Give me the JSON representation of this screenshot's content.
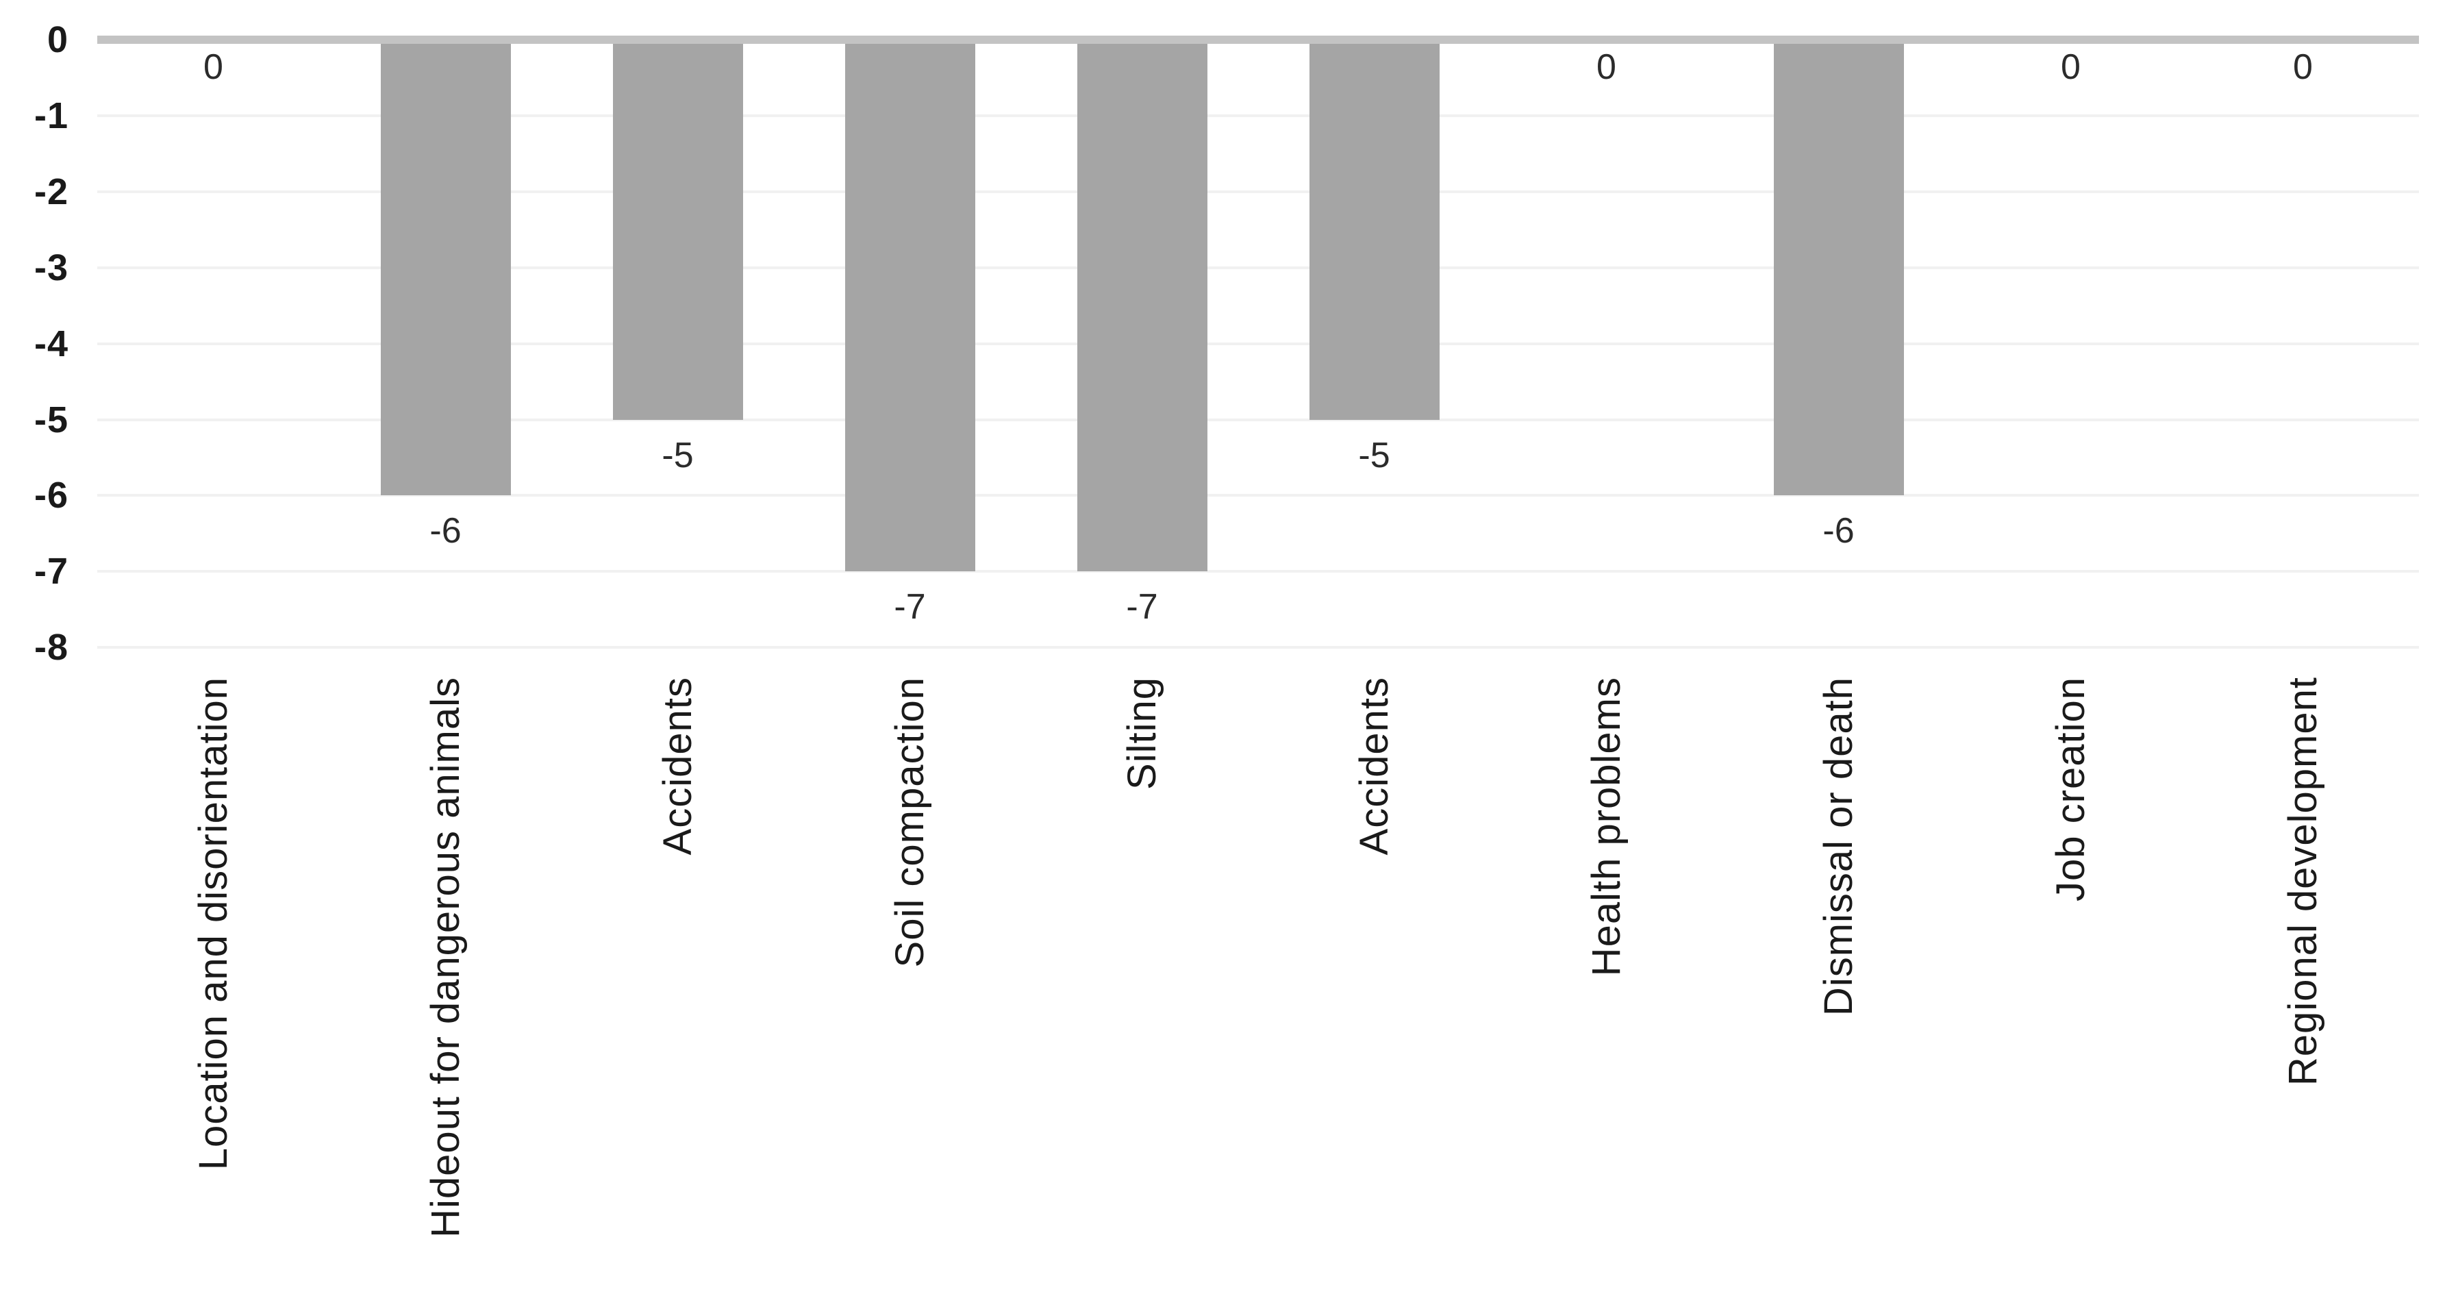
{
  "chart_data": {
    "type": "bar",
    "title": "",
    "xlabel": "",
    "ylabel": "",
    "categories": [
      "Location and disorientation",
      "Hideout for dangerous animals",
      "Accidents",
      "Soil compaction",
      "Silting",
      "Accidents",
      "Health problems",
      "Dismissal or death",
      "Job creation",
      "Regional development"
    ],
    "values": [
      0,
      -6,
      -5,
      -7,
      -7,
      -5,
      0,
      -6,
      0,
      0
    ],
    "data_labels": [
      "0",
      "-6",
      "-5",
      "-7",
      "-7",
      "-5",
      "0",
      "-6",
      "0",
      "0"
    ],
    "ylim": [
      -8,
      0
    ],
    "y_ticks": [
      0,
      -1,
      -2,
      -3,
      -4,
      -5,
      -6,
      -7,
      -8
    ],
    "y_tick_labels": [
      "0",
      "-1",
      "-2",
      "-3",
      "-4",
      "-5",
      "-6",
      "-7",
      "-8"
    ],
    "grid": true,
    "legend": false,
    "legend_position": "none",
    "colors": {
      "bar": "#a5a5a5",
      "zero_axis_line": "#c3c3c3",
      "gridline": "#f1f1f1",
      "tick_text": "#1a1a1a",
      "data_label_text": "#2b2b2b",
      "category_text": "#1a1a1a",
      "background": "#ffffff"
    }
  }
}
